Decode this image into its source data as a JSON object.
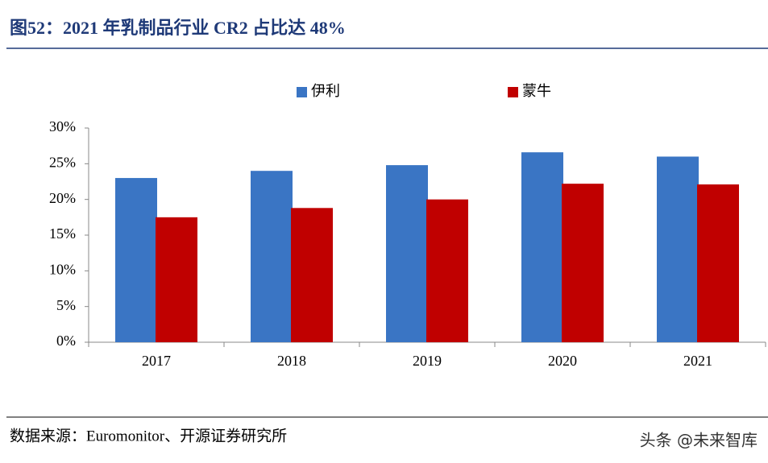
{
  "chart_data": {
    "type": "bar",
    "title": "图52：2021 年乳制品行业 CR2 占比达 48%",
    "source": "数据来源：Euromonitor、开源证券研究所",
    "watermark": "头条 @未来智库",
    "categories": [
      "2017",
      "2018",
      "2019",
      "2020",
      "2021"
    ],
    "series": [
      {
        "name": "伊利",
        "color": "#3a75c4",
        "values": [
          23.0,
          24.0,
          24.8,
          26.6,
          26.0
        ]
      },
      {
        "name": "蒙牛",
        "color": "#c00000",
        "values": [
          17.5,
          18.8,
          20.0,
          22.2,
          22.1
        ]
      }
    ],
    "ylim": [
      0,
      30
    ],
    "yticks": [
      {
        "value": 0,
        "label": "0%"
      },
      {
        "value": 5,
        "label": "5%"
      },
      {
        "value": 10,
        "label": "10%"
      },
      {
        "value": 15,
        "label": "15%"
      },
      {
        "value": 20,
        "label": "20%"
      },
      {
        "value": 25,
        "label": "25%"
      },
      {
        "value": 30,
        "label": "30%"
      }
    ],
    "grid": false
  }
}
